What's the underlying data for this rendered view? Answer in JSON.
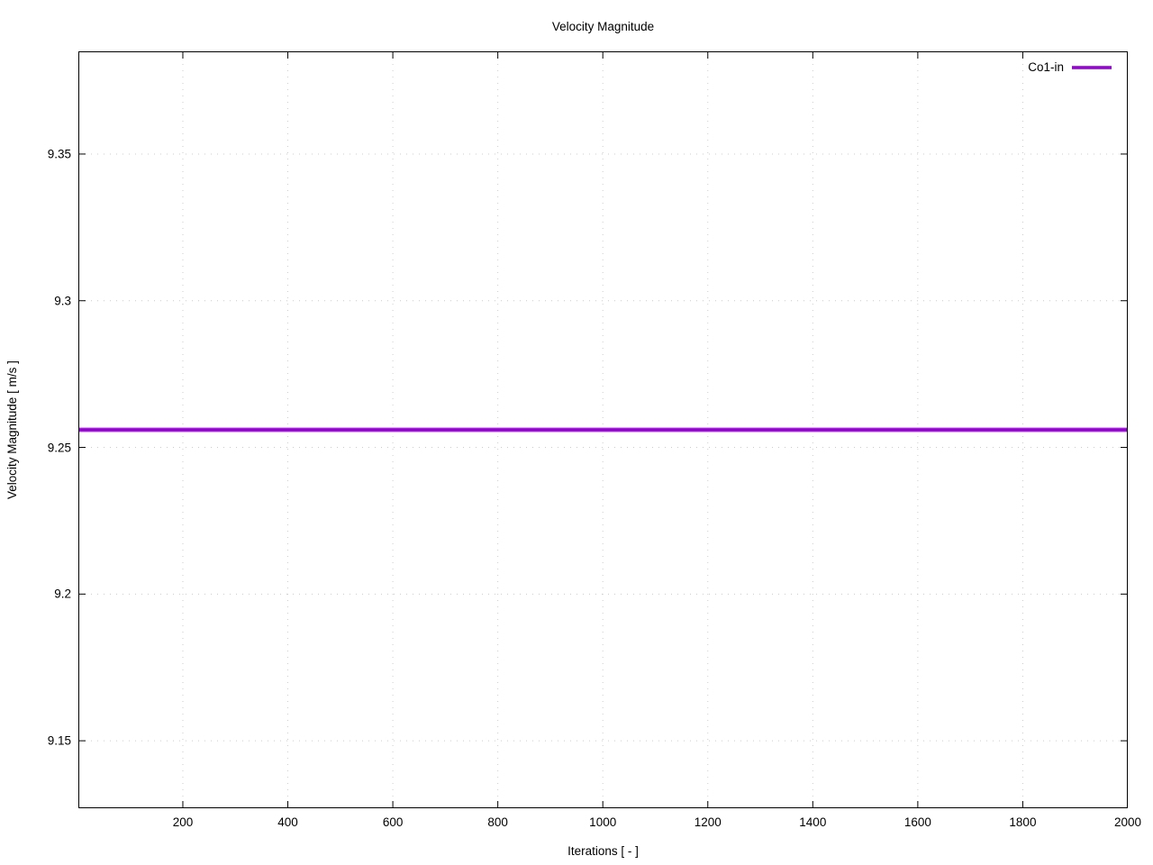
{
  "chart_data": {
    "type": "line",
    "title": "Velocity Magnitude",
    "xlabel": "Iterations [ - ]",
    "ylabel": "Velocity Magnitude [ m/s ]",
    "xlim": [
      1,
      2000
    ],
    "ylim": [
      9.127,
      9.385
    ],
    "x_ticks": [
      200,
      400,
      600,
      800,
      1000,
      1200,
      1400,
      1600,
      1800,
      2000
    ],
    "y_ticks": [
      9.15,
      9.2,
      9.25,
      9.3,
      9.35
    ],
    "grid": true,
    "grid_style": "dotted",
    "legend_position": "top-right-inside",
    "series": [
      {
        "name": "Co1-in",
        "color": "#9400d3",
        "style": "solid",
        "x": [
          1,
          2000
        ],
        "values": [
          9.256,
          9.256
        ]
      }
    ],
    "colors": {
      "background": "#ffffff",
      "axis": "#000000",
      "text": "#000000",
      "grid": "#cccccc"
    }
  }
}
